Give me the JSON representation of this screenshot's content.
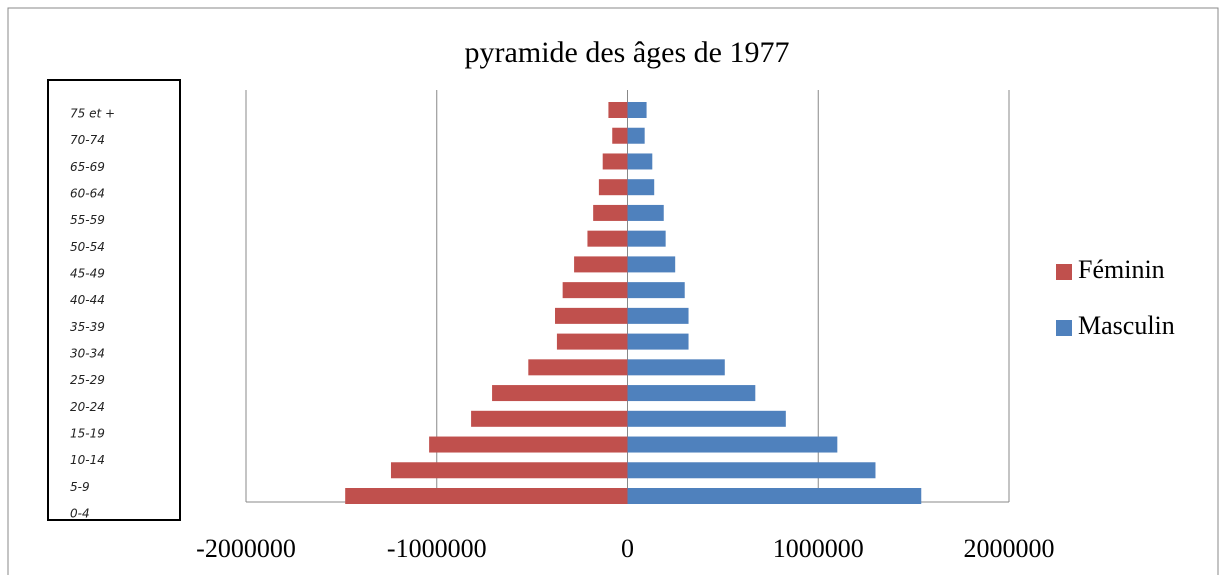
{
  "chart_data": {
    "type": "bar",
    "orientation": "horizontal",
    "stacked": true,
    "title": "pyramide des âges de 1977",
    "categories": [
      "0-4",
      "5-9",
      "10-14",
      "15-19",
      "20-24",
      "25-29",
      "30-34",
      "35-39",
      "40-44",
      "45-49",
      "50-54",
      "55-59",
      "60-64",
      "65-69",
      "70-74",
      "75 et +"
    ],
    "series": [
      {
        "name": "Féminin",
        "color": "#c0504d",
        "values": [
          -1480000,
          -1240000,
          -1040000,
          -820000,
          -710000,
          -520000,
          -370000,
          -380000,
          -340000,
          -280000,
          -210000,
          -180000,
          -150000,
          -130000,
          -80000,
          -100000
        ]
      },
      {
        "name": "Masculin",
        "color": "#4f81bd",
        "values": [
          1540000,
          1300000,
          1100000,
          830000,
          670000,
          510000,
          320000,
          320000,
          300000,
          250000,
          200000,
          190000,
          140000,
          130000,
          90000,
          100000
        ]
      }
    ],
    "xlim": [
      -2000000,
      2000000
    ],
    "xticks": [
      -2000000,
      -1000000,
      0,
      1000000,
      2000000
    ],
    "grid": true,
    "legend": "right"
  }
}
